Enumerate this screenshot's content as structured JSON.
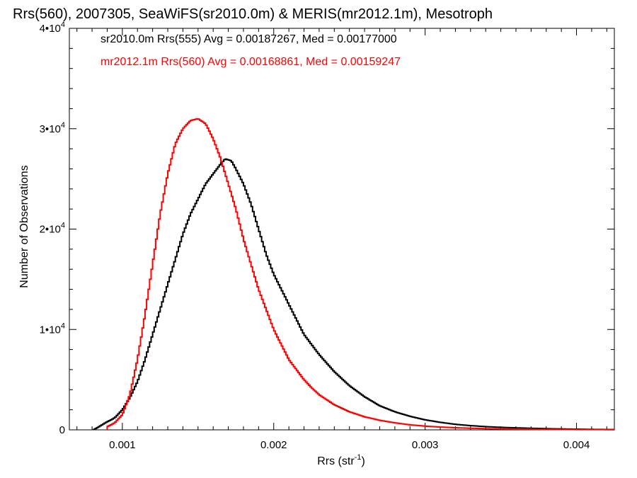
{
  "chart_data": {
    "type": "line",
    "step": true,
    "title": "Rrs(560), 2007305, SeaWiFS(sr2010.0m) & MERIS(mr2012.1m), Mesotroph",
    "xlabel": "Rrs (str",
    "xlabel_sup": "-1",
    "xlabel_close": ")",
    "ylabel": "Number of Observations",
    "xlim": [
      0.00065,
      0.00425
    ],
    "ylim": [
      0,
      40000
    ],
    "x_ticks": [
      {
        "value": 0.001,
        "label": "0.001"
      },
      {
        "value": 0.002,
        "label": "0.002"
      },
      {
        "value": 0.003,
        "label": "0.003"
      },
      {
        "value": 0.004,
        "label": "0.004"
      }
    ],
    "y_ticks": [
      {
        "value": 0,
        "base": "0",
        "exp": ""
      },
      {
        "value": 10000,
        "base": "1•10",
        "exp": "4"
      },
      {
        "value": 20000,
        "base": "2•10",
        "exp": "4"
      },
      {
        "value": 30000,
        "base": "3•10",
        "exp": "4"
      },
      {
        "value": 40000,
        "base": "4•10",
        "exp": "4"
      }
    ],
    "grid": false,
    "legend_position": "top-left",
    "series": [
      {
        "name": "sr2010.0m Rrs(555) Avg = 0.00187267, Med = 0.00177000",
        "color": "#000000",
        "x": [
          0.00081,
          0.0009,
          0.00095,
          0.001,
          0.00105,
          0.0011,
          0.00115,
          0.0012,
          0.00125,
          0.0013,
          0.00135,
          0.0014,
          0.00145,
          0.0015,
          0.00155,
          0.0016,
          0.00165,
          0.00168,
          0.00172,
          0.00175,
          0.0018,
          0.00185,
          0.0019,
          0.00195,
          0.002,
          0.00205,
          0.0021,
          0.00215,
          0.0022,
          0.00225,
          0.0023,
          0.0024,
          0.0025,
          0.0026,
          0.0027,
          0.0028,
          0.0029,
          0.003,
          0.0031,
          0.0032,
          0.0033,
          0.0034,
          0.0035,
          0.0036,
          0.0037,
          0.0038,
          0.0039,
          0.004,
          0.0041,
          0.00425
        ],
        "values": [
          0,
          800,
          1200,
          2000,
          3200,
          4800,
          7000,
          9500,
          12000,
          14500,
          17000,
          19500,
          21500,
          23000,
          24500,
          25500,
          26500,
          27000,
          26800,
          26000,
          24500,
          22500,
          20000,
          17500,
          15500,
          14000,
          12500,
          11000,
          9500,
          8500,
          7500,
          5800,
          4400,
          3300,
          2400,
          1800,
          1350,
          1000,
          750,
          550,
          420,
          320,
          250,
          200,
          160,
          120,
          90,
          70,
          50,
          30
        ]
      },
      {
        "name": "mr2012.1m Rrs(560) Avg = 0.00168861, Med = 0.00159247",
        "color": "#ff0000",
        "x": [
          0.0009,
          0.00095,
          0.001,
          0.00105,
          0.0011,
          0.00115,
          0.0012,
          0.00125,
          0.0013,
          0.00135,
          0.0014,
          0.00145,
          0.0015,
          0.00155,
          0.0016,
          0.00165,
          0.0017,
          0.00175,
          0.0018,
          0.00185,
          0.0019,
          0.00195,
          0.002,
          0.00205,
          0.0021,
          0.00215,
          0.0022,
          0.00225,
          0.0023,
          0.0024,
          0.0025,
          0.0026,
          0.0027,
          0.0028,
          0.0029,
          0.003,
          0.0031,
          0.0032,
          0.0033,
          0.0034,
          0.0035,
          0.0036,
          0.0038,
          0.004,
          0.00425
        ],
        "values": [
          300,
          700,
          1500,
          3500,
          7000,
          11500,
          16500,
          21500,
          25500,
          28500,
          30000,
          30800,
          31000,
          30500,
          29000,
          27000,
          24500,
          22000,
          19000,
          16500,
          14000,
          12000,
          10000,
          8500,
          7000,
          6000,
          5000,
          4200,
          3500,
          2500,
          1800,
          1300,
          950,
          700,
          500,
          370,
          280,
          210,
          160,
          120,
          90,
          70,
          45,
          30,
          20
        ]
      }
    ]
  }
}
